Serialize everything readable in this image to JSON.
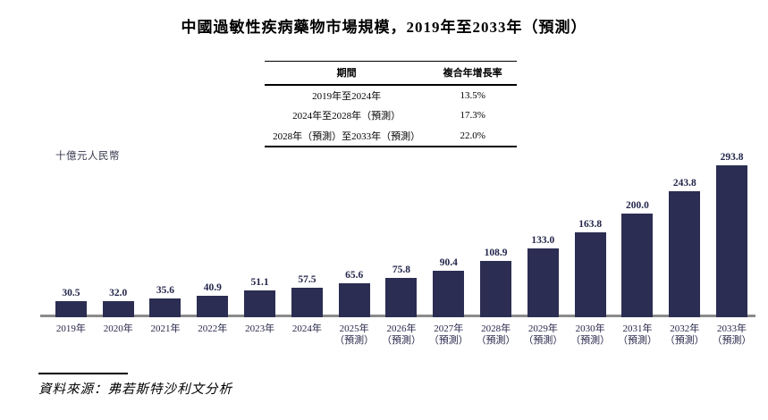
{
  "title": "中國過敏性疾病藥物市場規模，2019年至2033年（預測）",
  "cagr_table": {
    "headers": [
      "期間",
      "複合年增長率"
    ],
    "rows": [
      {
        "period": "2019年至2024年",
        "cagr": "13.5%"
      },
      {
        "period": "2024年至2028年（預測）",
        "cagr": "17.3%"
      },
      {
        "period": "2028年（預測）至2033年（預測）",
        "cagr": "22.0%"
      }
    ]
  },
  "chart_data": {
    "type": "bar",
    "title": "中國過敏性疾病藥物市場規模，2019年至2033年（預測）",
    "ylabel": "十億元人民幣",
    "xlabel": "",
    "categories": [
      {
        "label": "2019年",
        "sub": ""
      },
      {
        "label": "2020年",
        "sub": ""
      },
      {
        "label": "2021年",
        "sub": ""
      },
      {
        "label": "2022年",
        "sub": ""
      },
      {
        "label": "2023年",
        "sub": ""
      },
      {
        "label": "2024年",
        "sub": ""
      },
      {
        "label": "2025年",
        "sub": "（預測）"
      },
      {
        "label": "2026年",
        "sub": "（預測）"
      },
      {
        "label": "2027年",
        "sub": "（預測）"
      },
      {
        "label": "2028年",
        "sub": "（預測）"
      },
      {
        "label": "2029年",
        "sub": "（預測）"
      },
      {
        "label": "2030年",
        "sub": "（預測）"
      },
      {
        "label": "2031年",
        "sub": "（預測）"
      },
      {
        "label": "2032年",
        "sub": "（預測）"
      },
      {
        "label": "2033年",
        "sub": "（預測）"
      }
    ],
    "values": [
      30.5,
      32.0,
      35.6,
      40.9,
      51.1,
      57.5,
      65.6,
      75.8,
      90.4,
      108.9,
      133.0,
      163.8,
      200.0,
      243.8,
      293.8
    ],
    "value_labels": [
      "30.5",
      "32.0",
      "35.6",
      "40.9",
      "51.1",
      "57.5",
      "65.6",
      "75.8",
      "90.4",
      "108.9",
      "133.0",
      "163.8",
      "200.0",
      "243.8",
      "293.8"
    ],
    "ylim": [
      0,
      300
    ],
    "grid": false,
    "legend": "none",
    "bar_color": "#2b2d52",
    "axis_line_color": "#8b8b8b"
  },
  "source": "資料來源：弗若斯特沙利文分析"
}
